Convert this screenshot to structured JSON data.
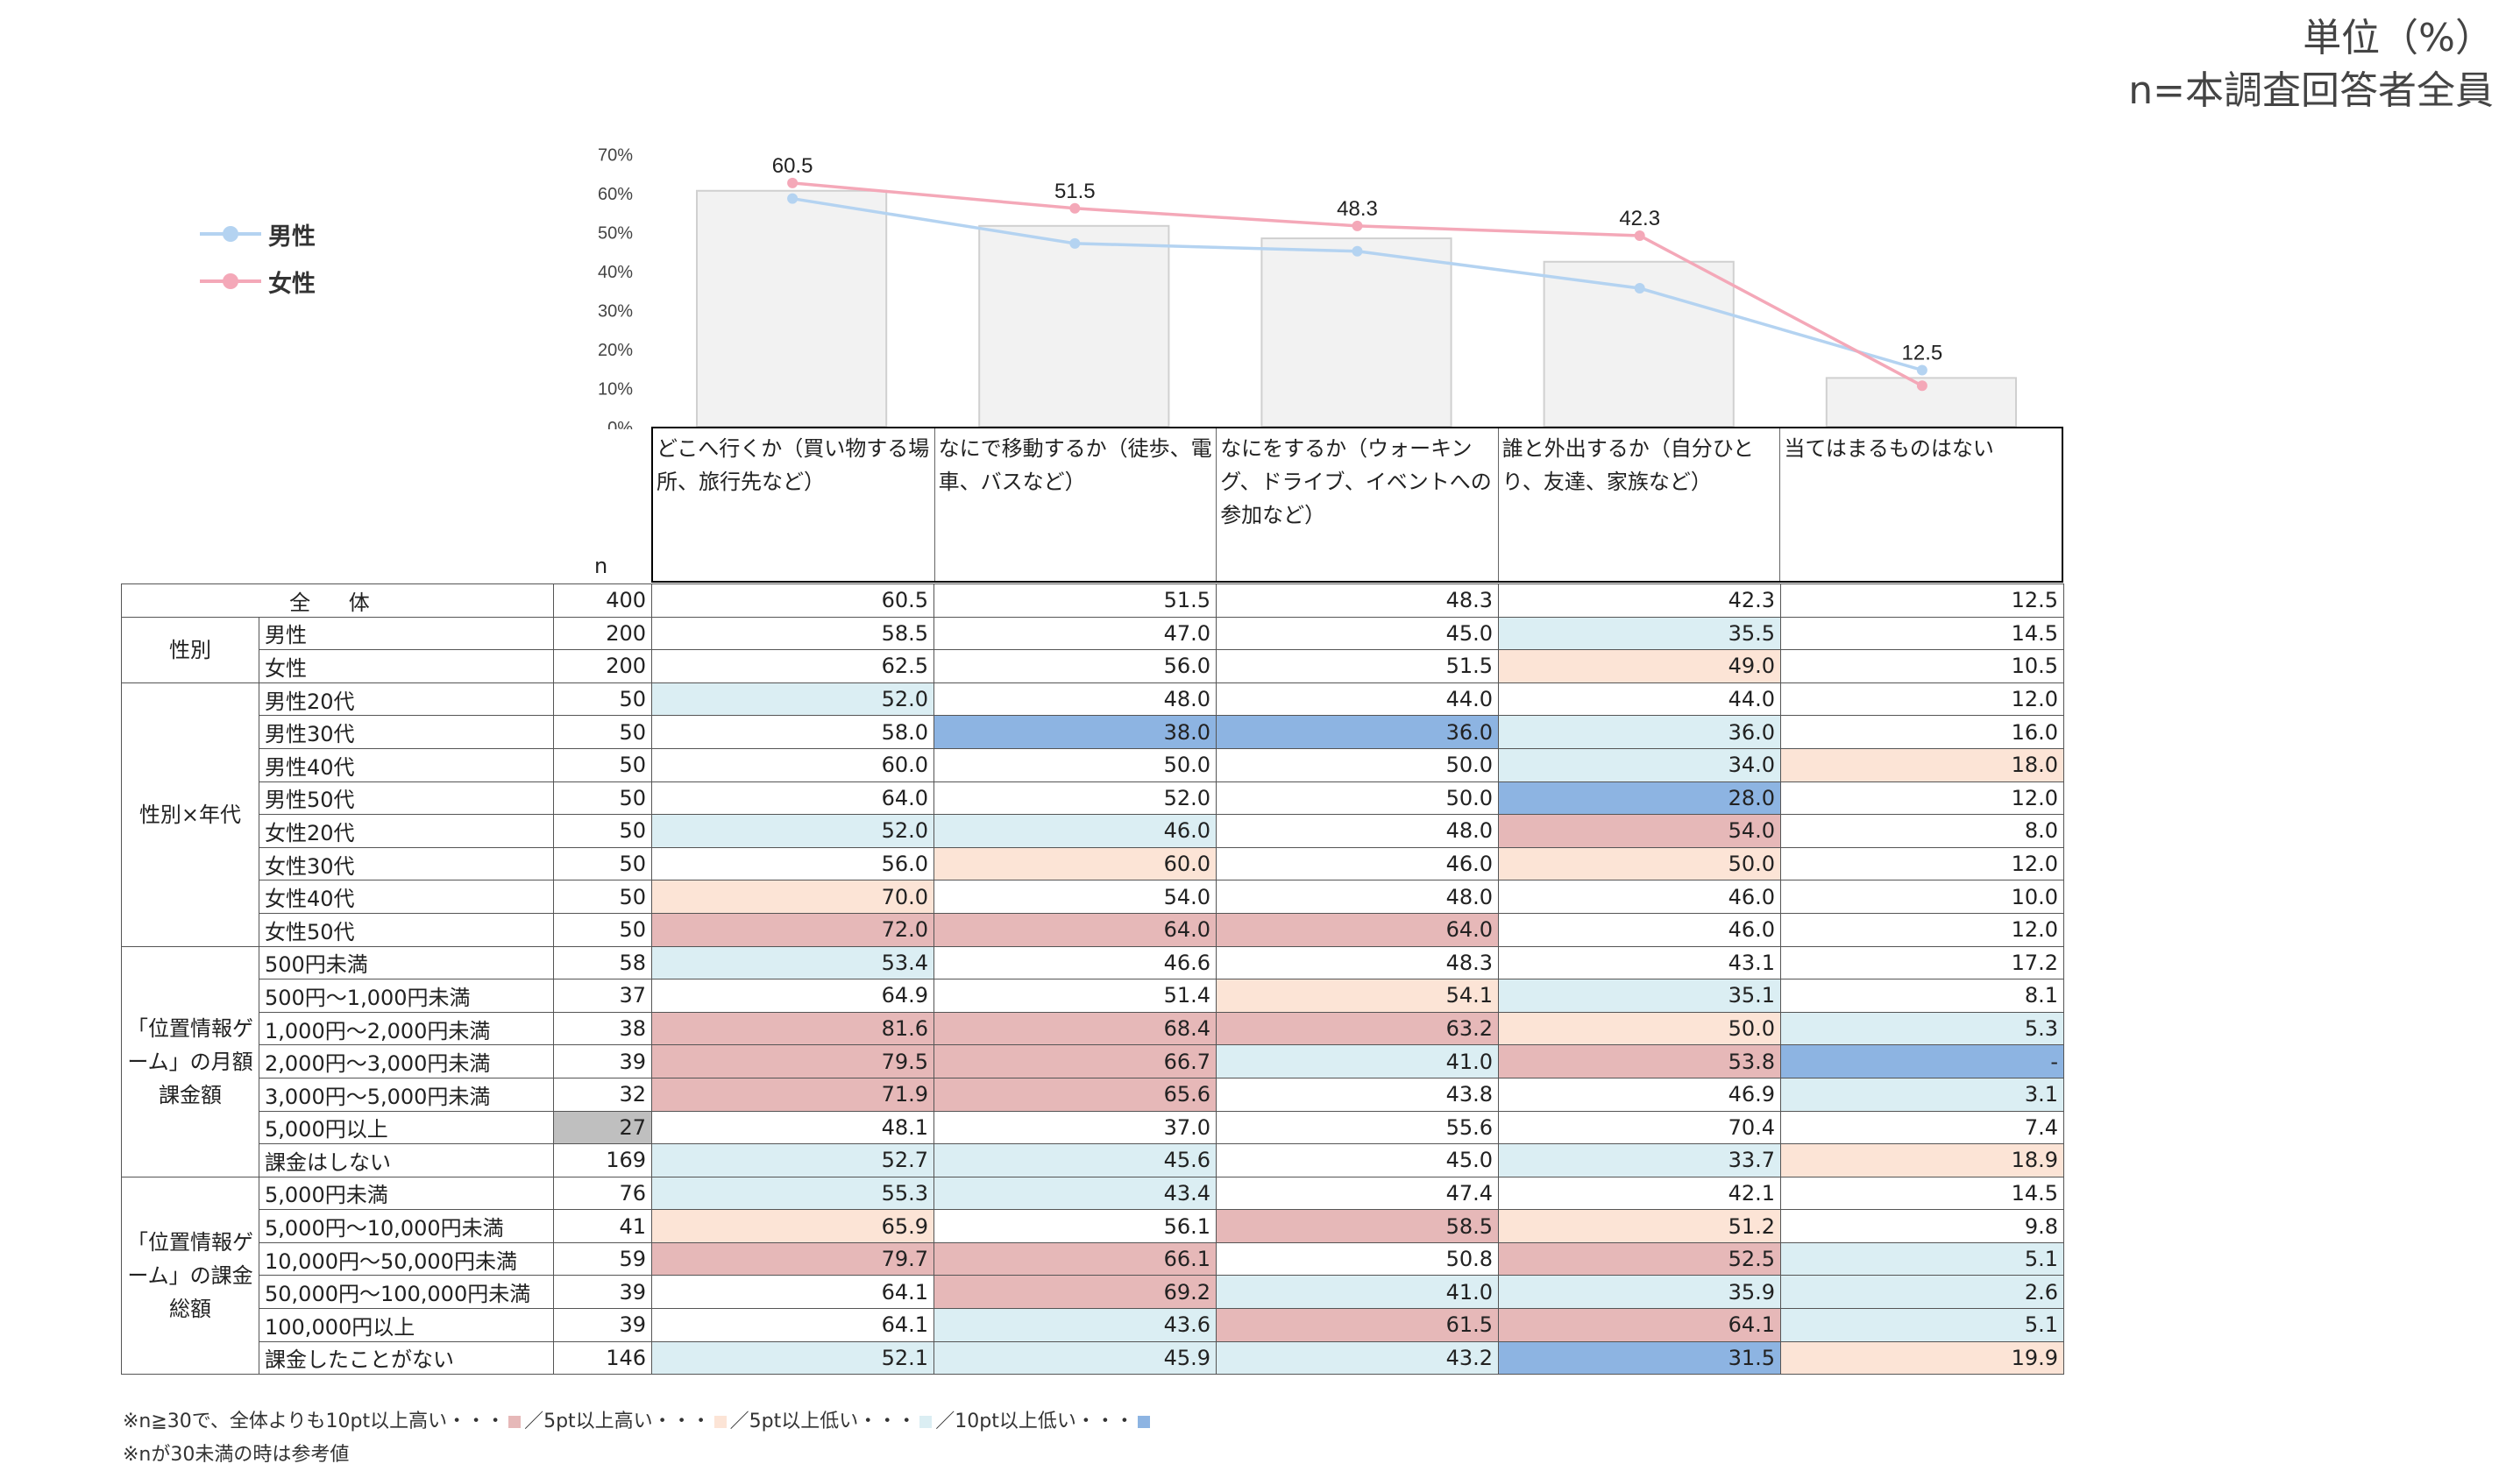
{
  "unit": {
    "line1": "単位（%）",
    "line2": "n=本調査回答者全員"
  },
  "legend": [
    {
      "label": "男性",
      "color": "#b4d3f1"
    },
    {
      "label": "女性",
      "color": "#f4a8b8"
    }
  ],
  "chart_data": {
    "type": "bar",
    "title": "",
    "categories": [
      "どこへ行くか（買い物する場所、旅行先など）",
      "なにで移動するか（徒歩、電車、バスなど）",
      "なにをするか（ウォーキング、ドライブ、イベントへの参加など）",
      "誰と外出するか（自分ひとり、友達、家族など）",
      "当てはまるものはない"
    ],
    "values": [
      60.5,
      51.5,
      48.3,
      42.3,
      12.5
    ],
    "value_labels": [
      "60.5",
      "51.5",
      "48.3",
      "42.3",
      "12.5"
    ],
    "series": [
      {
        "name": "全体",
        "type": "bar",
        "color": "#f2f2f2",
        "values": [
          60.5,
          51.5,
          48.3,
          42.3,
          12.5
        ]
      },
      {
        "name": "男性",
        "type": "line",
        "color": "#b4d3f1",
        "values": [
          58.5,
          47.0,
          45.0,
          35.5,
          14.5
        ]
      },
      {
        "name": "女性",
        "type": "line",
        "color": "#f4a8b8",
        "values": [
          62.5,
          56.0,
          51.5,
          49.0,
          10.5
        ]
      }
    ],
    "ylim": [
      0,
      70
    ],
    "yticks": [
      "0%",
      "10%",
      "20%",
      "30%",
      "40%",
      "50%",
      "60%",
      "70%"
    ],
    "xlabel": "",
    "ylabel": ""
  },
  "table": {
    "n_header": "n",
    "colors": {
      "hi10": "#e6b8b8",
      "hi5": "#fce4d6",
      "lo5": "#dbeef3",
      "lo10": "#8db4e2",
      "ref": "#bfbfbf"
    },
    "groups": [
      {
        "label": "全 体",
        "rows": [
          {
            "label": "",
            "n": "400",
            "vals": [
              "60.5",
              "51.5",
              "48.3",
              "42.3",
              "12.5"
            ],
            "cls": [
              "",
              "",
              "",
              "",
              ""
            ]
          }
        ]
      },
      {
        "label": "性別",
        "rows": [
          {
            "label": "男性",
            "n": "200",
            "vals": [
              "58.5",
              "47.0",
              "45.0",
              "35.5",
              "14.5"
            ],
            "cls": [
              "",
              "",
              "",
              "lo5",
              ""
            ]
          },
          {
            "label": "女性",
            "n": "200",
            "vals": [
              "62.5",
              "56.0",
              "51.5",
              "49.0",
              "10.5"
            ],
            "cls": [
              "",
              "",
              "",
              "hi5",
              ""
            ]
          }
        ]
      },
      {
        "label": "性別×年代",
        "rows": [
          {
            "label": "男性20代",
            "n": "50",
            "vals": [
              "52.0",
              "48.0",
              "44.0",
              "44.0",
              "12.0"
            ],
            "cls": [
              "lo5",
              "",
              "",
              "",
              ""
            ]
          },
          {
            "label": "男性30代",
            "n": "50",
            "vals": [
              "58.0",
              "38.0",
              "36.0",
              "36.0",
              "16.0"
            ],
            "cls": [
              "",
              "lo10",
              "lo10",
              "lo5",
              ""
            ]
          },
          {
            "label": "男性40代",
            "n": "50",
            "vals": [
              "60.0",
              "50.0",
              "50.0",
              "34.0",
              "18.0"
            ],
            "cls": [
              "",
              "",
              "",
              "lo5",
              "hi5"
            ]
          },
          {
            "label": "男性50代",
            "n": "50",
            "vals": [
              "64.0",
              "52.0",
              "50.0",
              "28.0",
              "12.0"
            ],
            "cls": [
              "",
              "",
              "",
              "lo10",
              ""
            ]
          },
          {
            "label": "女性20代",
            "n": "50",
            "vals": [
              "52.0",
              "46.0",
              "48.0",
              "54.0",
              "8.0"
            ],
            "cls": [
              "lo5",
              "lo5",
              "",
              "hi10",
              ""
            ]
          },
          {
            "label": "女性30代",
            "n": "50",
            "vals": [
              "56.0",
              "60.0",
              "46.0",
              "50.0",
              "12.0"
            ],
            "cls": [
              "",
              "hi5",
              "",
              "hi5",
              ""
            ]
          },
          {
            "label": "女性40代",
            "n": "50",
            "vals": [
              "70.0",
              "54.0",
              "48.0",
              "46.0",
              "10.0"
            ],
            "cls": [
              "hi5",
              "",
              "",
              "",
              ""
            ]
          },
          {
            "label": "女性50代",
            "n": "50",
            "vals": [
              "72.0",
              "64.0",
              "64.0",
              "46.0",
              "12.0"
            ],
            "cls": [
              "hi10",
              "hi10",
              "hi10",
              "",
              ""
            ]
          }
        ]
      },
      {
        "label": "「位置情報ゲーム」の月額課金額",
        "rows": [
          {
            "label": "500円未満",
            "n": "58",
            "vals": [
              "53.4",
              "46.6",
              "48.3",
              "43.1",
              "17.2"
            ],
            "cls": [
              "lo5",
              "",
              "",
              "",
              ""
            ]
          },
          {
            "label": "500円～1,000円未満",
            "n": "37",
            "vals": [
              "64.9",
              "51.4",
              "54.1",
              "35.1",
              "8.1"
            ],
            "cls": [
              "",
              "",
              "hi5",
              "lo5",
              ""
            ]
          },
          {
            "label": "1,000円～2,000円未満",
            "n": "38",
            "vals": [
              "81.6",
              "68.4",
              "63.2",
              "50.0",
              "5.3"
            ],
            "cls": [
              "hi10",
              "hi10",
              "hi10",
              "hi5",
              "lo5"
            ]
          },
          {
            "label": "2,000円～3,000円未満",
            "n": "39",
            "vals": [
              "79.5",
              "66.7",
              "41.0",
              "53.8",
              "-"
            ],
            "cls": [
              "hi10",
              "hi10",
              "lo5",
              "hi10",
              "lo10"
            ]
          },
          {
            "label": "3,000円～5,000円未満",
            "n": "32",
            "vals": [
              "71.9",
              "65.6",
              "43.8",
              "46.9",
              "3.1"
            ],
            "cls": [
              "hi10",
              "hi10",
              "",
              "",
              "lo5"
            ]
          },
          {
            "label": "5,000円以上",
            "n": "27",
            "ncls": "ref",
            "vals": [
              "48.1",
              "37.0",
              "55.6",
              "70.4",
              "7.4"
            ],
            "cls": [
              "",
              "",
              "",
              "",
              ""
            ]
          },
          {
            "label": "課金はしない",
            "n": "169",
            "vals": [
              "52.7",
              "45.6",
              "45.0",
              "33.7",
              "18.9"
            ],
            "cls": [
              "lo5",
              "lo5",
              "",
              "lo5",
              "hi5"
            ]
          }
        ]
      },
      {
        "label": "「位置情報ゲーム」の課金総額",
        "rows": [
          {
            "label": "5,000円未満",
            "n": "76",
            "vals": [
              "55.3",
              "43.4",
              "47.4",
              "42.1",
              "14.5"
            ],
            "cls": [
              "lo5",
              "lo5",
              "",
              "",
              ""
            ]
          },
          {
            "label": "5,000円～10,000円未満",
            "n": "41",
            "vals": [
              "65.9",
              "56.1",
              "58.5",
              "51.2",
              "9.8"
            ],
            "cls": [
              "hi5",
              "",
              "hi10",
              "hi5",
              ""
            ]
          },
          {
            "label": "10,000円～50,000円未満",
            "n": "59",
            "vals": [
              "79.7",
              "66.1",
              "50.8",
              "52.5",
              "5.1"
            ],
            "cls": [
              "hi10",
              "hi10",
              "",
              "hi10",
              "lo5"
            ]
          },
          {
            "label": "50,000円～100,000円未満",
            "n": "39",
            "vals": [
              "64.1",
              "69.2",
              "41.0",
              "35.9",
              "2.6"
            ],
            "cls": [
              "",
              "hi10",
              "lo5",
              "lo5",
              "lo5"
            ]
          },
          {
            "label": "100,000円以上",
            "n": "39",
            "vals": [
              "64.1",
              "43.6",
              "61.5",
              "64.1",
              "5.1"
            ],
            "cls": [
              "",
              "lo5",
              "hi10",
              "hi10",
              "lo5"
            ]
          },
          {
            "label": "課金したことがない",
            "n": "146",
            "vals": [
              "52.1",
              "45.9",
              "43.2",
              "31.5",
              "19.9"
            ],
            "cls": [
              "lo5",
              "lo5",
              "lo5",
              "lo10",
              "hi5"
            ]
          }
        ]
      }
    ]
  },
  "notes": {
    "line1_parts": [
      "※n≧30で、全体よりも10pt以上高い・・・",
      "／5pt以上高い・・・",
      "／5pt以上低い・・・",
      "／10pt以上低い・・・"
    ],
    "line2": "※nが30未満の時は参考値"
  }
}
